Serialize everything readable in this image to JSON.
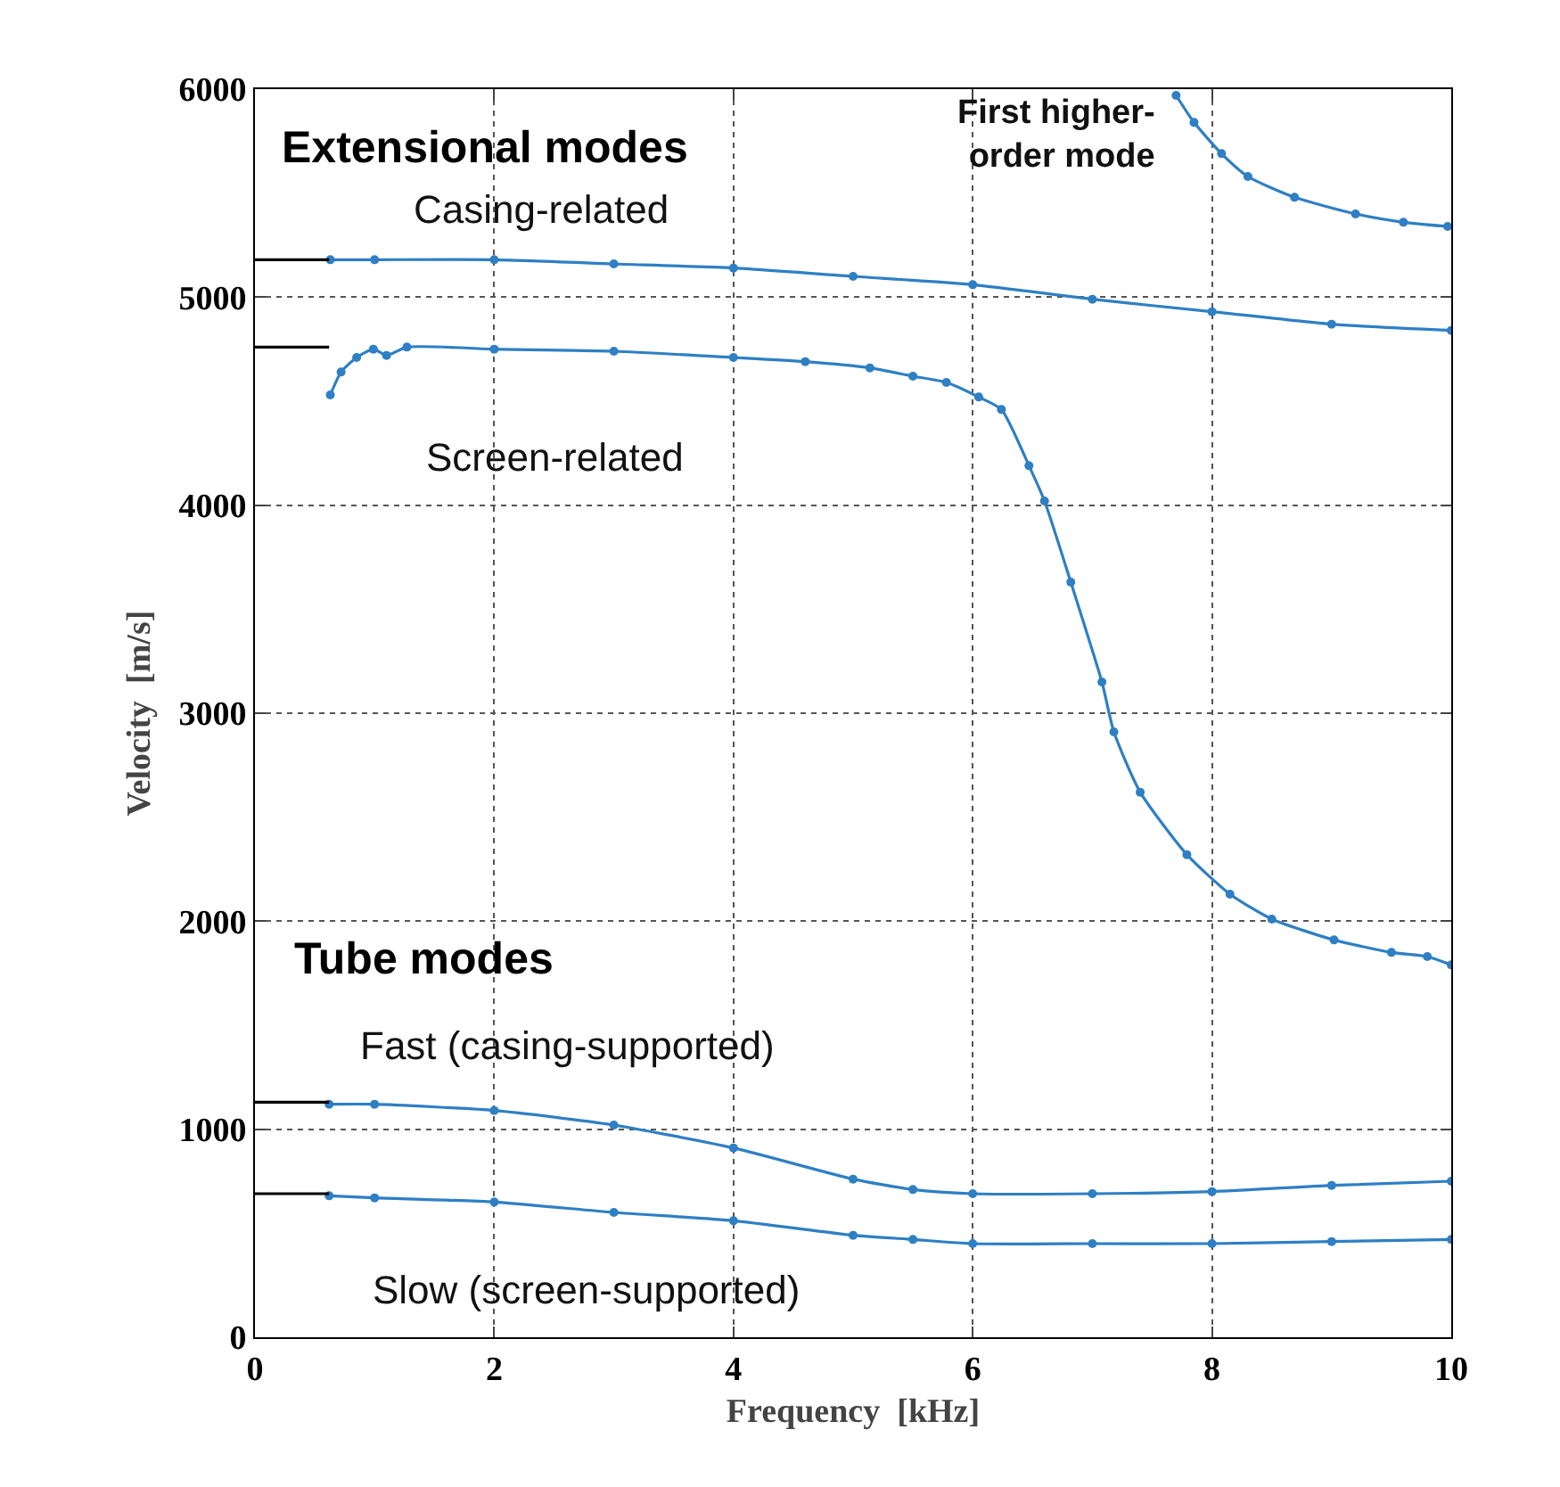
{
  "chart_data": {
    "type": "line",
    "xlabel": "Frequency  [kHz]",
    "ylabel": "Velocity  [m/s]",
    "xlim": [
      0,
      10
    ],
    "ylim": [
      0,
      6000
    ],
    "xticks": [
      0,
      2,
      4,
      6,
      8,
      10
    ],
    "yticks": [
      0,
      1000,
      2000,
      3000,
      4000,
      5000,
      6000
    ],
    "grid": true,
    "marker": "circle",
    "line_style": "solid",
    "legend": false,
    "annotations": [
      "Extensional modes",
      "Tube modes"
    ],
    "series": [
      {
        "name": "Casing-related",
        "color": "#2e7fc4",
        "x": [
          0.63,
          1,
          2,
          3,
          4,
          5,
          6,
          7,
          8,
          9,
          10
        ],
        "values": [
          5180,
          5180,
          5180,
          5160,
          5140,
          5100,
          5060,
          4990,
          4930,
          4870,
          4840
        ]
      },
      {
        "name": "Screen-related",
        "color": "#2e7fc4",
        "x": [
          0.63,
          0.72,
          0.85,
          0.99,
          1.1,
          1.27,
          2,
          3,
          4,
          4.6,
          5.14,
          5.5,
          5.78,
          6.05,
          6.24,
          6.47,
          6.6,
          6.82,
          7.08,
          7.18,
          7.4,
          7.79,
          8.15,
          8.5,
          9.02,
          9.5,
          9.8,
          10
        ],
        "values": [
          4530,
          4640,
          4710,
          4750,
          4720,
          4760,
          4750,
          4740,
          4710,
          4690,
          4660,
          4620,
          4590,
          4520,
          4460,
          4190,
          4020,
          3630,
          3150,
          2910,
          2620,
          2320,
          2130,
          2010,
          1910,
          1850,
          1830,
          1790
        ]
      },
      {
        "name": "First higher-order mode",
        "color": "#2e7fc4",
        "x": [
          7.7,
          7.85,
          8.08,
          8.3,
          8.69,
          9.2,
          9.6,
          9.97
        ],
        "values": [
          5970,
          5840,
          5690,
          5580,
          5480,
          5400,
          5360,
          5340
        ]
      },
      {
        "name": "Fast (casing-supported)",
        "color": "#2e7fc4",
        "x": [
          0.62,
          1,
          2,
          3,
          4,
          5,
          5.5,
          6,
          7,
          8,
          9,
          10
        ],
        "values": [
          1120,
          1120,
          1090,
          1020,
          910,
          760,
          710,
          690,
          690,
          700,
          730,
          750
        ]
      },
      {
        "name": "Slow (screen-supported)",
        "color": "#2e7fc4",
        "x": [
          0.62,
          1,
          2,
          3,
          4,
          5,
          5.5,
          6,
          7,
          8,
          9,
          10
        ],
        "values": [
          680,
          670,
          650,
          600,
          560,
          490,
          470,
          450,
          450,
          450,
          460,
          470
        ]
      },
      {
        "type": "line",
        "marker": "none",
        "color": "#000000",
        "x": [
          0,
          0.62
        ],
        "values": [
          5180,
          5180
        ]
      },
      {
        "type": "line",
        "marker": "none",
        "color": "#000000",
        "x": [
          0,
          0.62
        ],
        "values": [
          4760,
          4760
        ]
      },
      {
        "type": "line",
        "marker": "none",
        "color": "#000000",
        "x": [
          0,
          0.62
        ],
        "values": [
          1130,
          1130
        ]
      },
      {
        "type": "line",
        "marker": "none",
        "color": "#000000",
        "x": [
          0,
          0.62
        ],
        "values": [
          690,
          690
        ]
      }
    ]
  }
}
